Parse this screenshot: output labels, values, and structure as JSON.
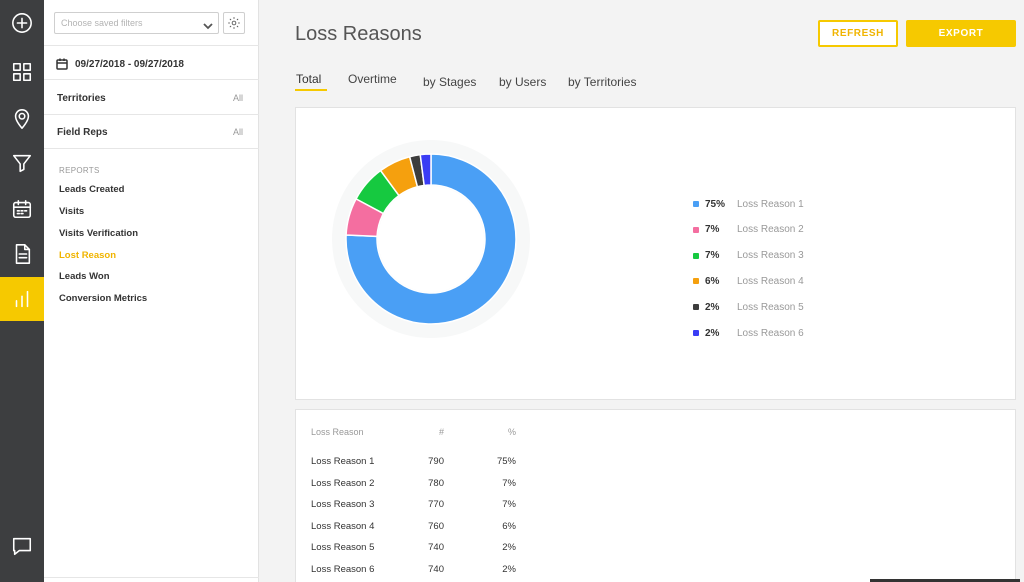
{
  "sidebar": {
    "saved_filter_placeholder": "Choose saved filters",
    "date_range": "09/27/2018 - 09/27/2018",
    "filters": [
      {
        "label": "Territories",
        "value": "All"
      },
      {
        "label": "Field Reps",
        "value": "All"
      }
    ],
    "reports_heading": "REPORTS",
    "reports": [
      {
        "label": "Leads Created"
      },
      {
        "label": "Visits"
      },
      {
        "label": "Visits Verification"
      },
      {
        "label": "Lost Reason"
      },
      {
        "label": "Leads Won"
      },
      {
        "label": "Conversion Metrics"
      }
    ]
  },
  "header": {
    "title": "Loss Reasons",
    "refresh_label": "REFRESH",
    "export_label": "EXPORT"
  },
  "tabs": [
    {
      "label": "Total"
    },
    {
      "label": "Overtime"
    },
    {
      "label": "by Stages"
    },
    {
      "label": "by Users"
    },
    {
      "label": "by Territories"
    }
  ],
  "chart_data": {
    "type": "pie",
    "donut": true,
    "categories": [
      "Loss Reason 1",
      "Loss Reason 2",
      "Loss Reason 3",
      "Loss Reason 4",
      "Loss Reason 5",
      "Loss Reason 6"
    ],
    "values": [
      75,
      7,
      7,
      6,
      2,
      2
    ],
    "value_labels": [
      "75%",
      "7%",
      "7%",
      "6%",
      "2%",
      "2%"
    ],
    "colors": [
      "#4a9ff5",
      "#f46ea0",
      "#16c940",
      "#f5a00e",
      "#3d3d3d",
      "#3a3df5"
    ],
    "legend_position": "right"
  },
  "table": {
    "headers": [
      "Loss Reason",
      "#",
      "%"
    ],
    "rows": [
      [
        "Loss Reason 1",
        "790",
        "75%"
      ],
      [
        "Loss Reason 2",
        "780",
        "7%"
      ],
      [
        "Loss Reason 3",
        "770",
        "7%"
      ],
      [
        "Loss Reason 4",
        "760",
        "6%"
      ],
      [
        "Loss Reason 5",
        "740",
        "2%"
      ],
      [
        "Loss Reason 6",
        "740",
        "2%"
      ]
    ]
  },
  "accent_color": "#f6c900"
}
